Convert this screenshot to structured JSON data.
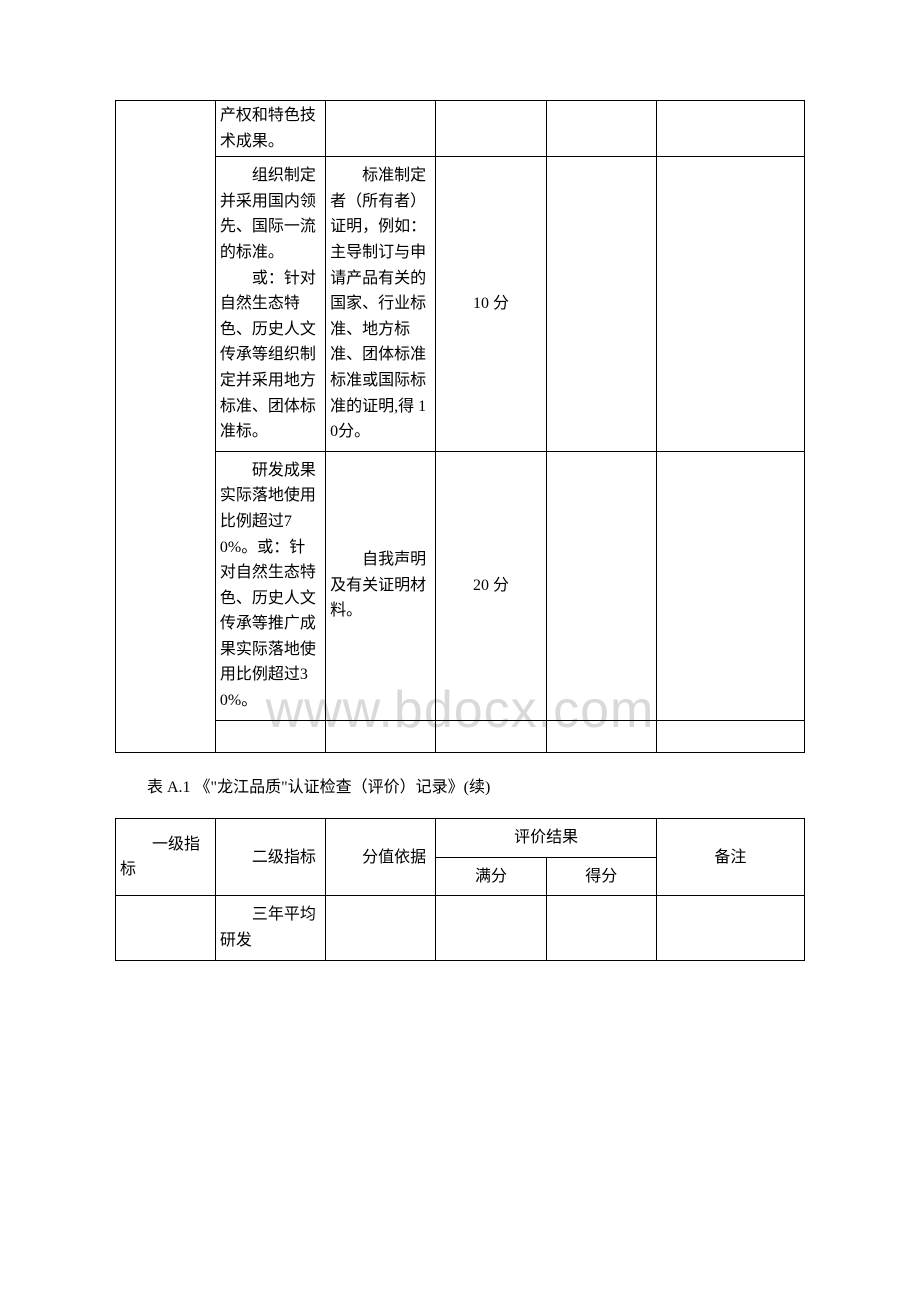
{
  "watermark": "www.bdocx.com",
  "table1": {
    "rows": [
      {
        "col2": "产权和特色技术成果。",
        "col3": "",
        "col4": "",
        "col5": "",
        "col6": ""
      },
      {
        "col2_part1": "组织制定并采用国内领先、国际一流的标准。",
        "col2_part2": "或：针对自然生态特色、历史人文传承等组织制定并采用地方标准、团体标准标。",
        "col3": "标准制定者（所有者）证明，例如：主导制订与申请产品有关的国家、行业标准、地方标准、团体标准标准或国际标准的证明,得 10分。",
        "col4": "10 分",
        "col5": "",
        "col6": ""
      },
      {
        "col2": "研发成果实际落地使用比例超过70%。或：针对自然生态特色、历史人文传承等推广成果实际落地使用比例超过30%。",
        "col3": "自我声明及有关证明材料。",
        "col4": "20 分",
        "col5": "",
        "col6": ""
      }
    ]
  },
  "caption": "表 A.1 《\"龙江品质\"认证检查（评价）记录》(续)",
  "table2": {
    "headers": {
      "h1": "一级指标",
      "h2": "二级指标",
      "h3": "分值依据",
      "h4": "评价结果",
      "h4a": "满分",
      "h4b": "得分",
      "h5": "备注"
    },
    "row1": {
      "col2": "三年平均研发",
      "col1": "",
      "col3": "",
      "col4": "",
      "col5": "",
      "col6": ""
    }
  }
}
